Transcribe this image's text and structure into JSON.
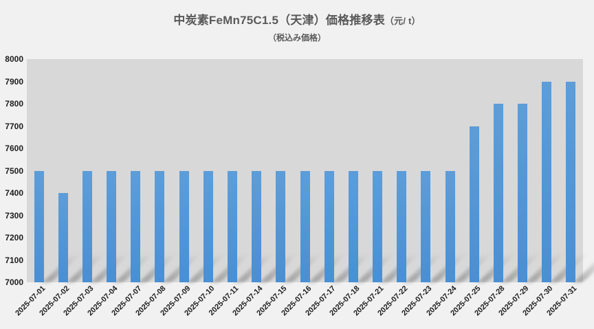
{
  "title": {
    "main": "中炭素FeMn75C1.5（天津）価格推移表",
    "unit": "（元/ t）",
    "subtitle": "（税込み価格）"
  },
  "chart_data": {
    "type": "bar",
    "title": "中炭素FeMn75C1.5（天津）価格推移表（元/ t）",
    "subtitle": "（税込み価格）",
    "xlabel": "",
    "ylabel": "",
    "categories": [
      "2025-07-01",
      "2025-07-02",
      "2025-07-03",
      "2025-07-04",
      "2025-07-07",
      "2025-07-08",
      "2025-07-09",
      "2025-07-10",
      "2025-07-11",
      "2025-07-14",
      "2025-07-15",
      "2025-07-16",
      "2025-07-17",
      "2025-07-18",
      "2025-07-21",
      "2025-07-22",
      "2025-07-23",
      "2025-07-24",
      "2025-07-25",
      "2025-07-28",
      "2025-07-29",
      "2025-07-30",
      "2025-07-31"
    ],
    "values": [
      7500,
      7400,
      7500,
      7500,
      7500,
      7500,
      7500,
      7500,
      7500,
      7500,
      7500,
      7500,
      7500,
      7500,
      7500,
      7500,
      7500,
      7500,
      7700,
      7800,
      7800,
      7900,
      7900
    ],
    "ylim": [
      7000,
      8000
    ],
    "yticks": [
      8000,
      7900,
      7800,
      7700,
      7600,
      7500,
      7400,
      7300,
      7200,
      7100,
      7000
    ],
    "grid": false,
    "legend": false,
    "bar_color": "#5B9BD5",
    "plot_bg": "#D8D8D8",
    "page_bg": "#F1F1F1",
    "title_color": "#595959",
    "tick_color": "#1C1C1C"
  }
}
